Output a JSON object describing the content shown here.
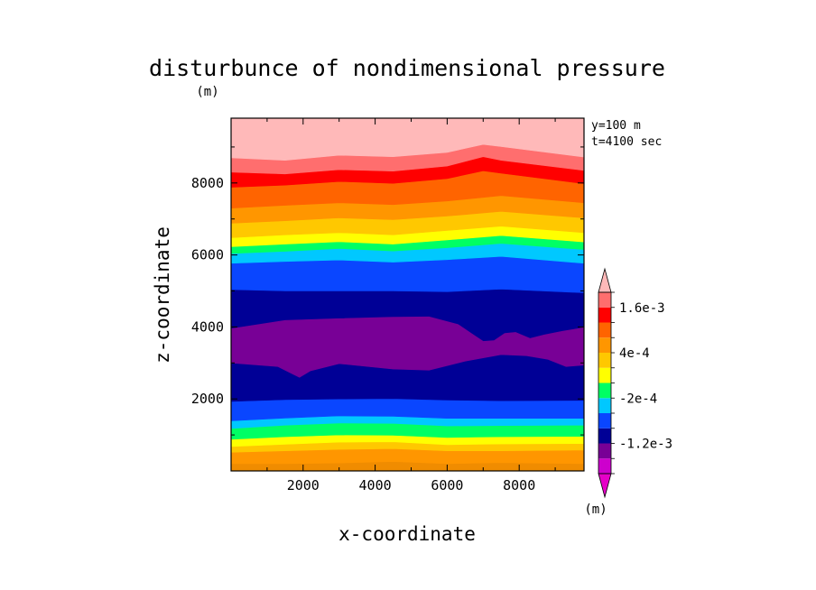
{
  "chart_data": {
    "type": "contourf",
    "title": "disturbunce of nondimensional pressure",
    "xlabel": "x-coordinate",
    "ylabel": "z-coordinate",
    "x_unit": "(m)",
    "y_unit": "(m)",
    "xlim": [
      0,
      9800
    ],
    "ylim": [
      0,
      9800
    ],
    "xticks": [
      2000,
      4000,
      6000,
      8000
    ],
    "yticks": [
      2000,
      4000,
      6000,
      8000
    ],
    "info": {
      "slice": "y=100 m",
      "time": "t=4100 sec"
    },
    "colorbar": {
      "unit": "(m)",
      "extend": "both",
      "under_color": "#e600c8",
      "over_color": "#ffb9b9",
      "levels": [
        -0.002,
        -0.0016,
        -0.0012,
        -0.0008,
        -0.0004,
        -0.0002,
        0,
        0.0002,
        0.0004,
        0.0008,
        0.0012,
        0.0016,
        0.002
      ],
      "colors": [
        "#cd00cd",
        "#780096",
        "#000096",
        "#0a46ff",
        "#00c8ff",
        "#00ff64",
        "#ffff00",
        "#ffc800",
        "#ff9600",
        "#ff6400",
        "#ff0000",
        "#ff6e6e"
      ],
      "tick_labels": [
        {
          "level": 0.0016,
          "text": "1.6e-3"
        },
        {
          "level": 0.0004,
          "text": "4e-4"
        },
        {
          "level": -0.0002,
          "text": "-2e-4"
        },
        {
          "level": -0.0012,
          "text": "-1.2e-3"
        }
      ]
    },
    "bands": [
      {
        "color": "#f08c00",
        "lower": [
          [
            0,
            0
          ],
          [
            9800,
            0
          ]
        ]
      },
      {
        "color": "#ff9600",
        "lower": [
          [
            0,
            200
          ],
          [
            1500,
            200
          ],
          [
            3000,
            220
          ],
          [
            4500,
            260
          ],
          [
            6000,
            200
          ],
          [
            7500,
            230
          ],
          [
            9800,
            200
          ]
        ]
      },
      {
        "color": "#ffc800",
        "lower": [
          [
            0,
            520
          ],
          [
            1500,
            560
          ],
          [
            3000,
            600
          ],
          [
            4500,
            620
          ],
          [
            6000,
            560
          ],
          [
            7500,
            560
          ],
          [
            9800,
            580
          ]
        ]
      },
      {
        "color": "#ffff00",
        "lower": [
          [
            0,
            680
          ],
          [
            1500,
            740
          ],
          [
            3000,
            800
          ],
          [
            4500,
            810
          ],
          [
            6000,
            730
          ],
          [
            7500,
            750
          ],
          [
            9800,
            760
          ]
        ]
      },
      {
        "color": "#00ff64",
        "lower": [
          [
            0,
            880
          ],
          [
            1500,
            950
          ],
          [
            3000,
            1000
          ],
          [
            4500,
            990
          ],
          [
            6000,
            930
          ],
          [
            7500,
            950
          ],
          [
            9800,
            960
          ]
        ]
      },
      {
        "color": "#00c8ff",
        "lower": [
          [
            0,
            1180
          ],
          [
            1500,
            1270
          ],
          [
            3000,
            1330
          ],
          [
            4500,
            1320
          ],
          [
            6000,
            1250
          ],
          [
            7500,
            1260
          ],
          [
            9800,
            1270
          ]
        ]
      },
      {
        "color": "#0a46ff",
        "lower": [
          [
            0,
            1390
          ],
          [
            1500,
            1470
          ],
          [
            3000,
            1530
          ],
          [
            4500,
            1520
          ],
          [
            6000,
            1460
          ],
          [
            7500,
            1460
          ],
          [
            9800,
            1460
          ]
        ]
      },
      {
        "color": "#000096",
        "lower": [
          [
            0,
            1930
          ],
          [
            1500,
            1980
          ],
          [
            3000,
            2000
          ],
          [
            4500,
            2010
          ],
          [
            6000,
            1970
          ],
          [
            7500,
            1950
          ],
          [
            9800,
            1960
          ]
        ]
      },
      {
        "color": "#780096",
        "lower": [
          [
            0,
            3000
          ],
          [
            1300,
            2900
          ],
          [
            1700,
            2700
          ],
          [
            1900,
            2600
          ],
          [
            2200,
            2780
          ],
          [
            3000,
            2980
          ],
          [
            4500,
            2830
          ],
          [
            5500,
            2800
          ],
          [
            6500,
            3050
          ],
          [
            7500,
            3230
          ],
          [
            8200,
            3200
          ],
          [
            8800,
            3100
          ],
          [
            9300,
            2900
          ],
          [
            9800,
            2940
          ]
        ],
        "upper": [
          [
            0,
            3950
          ],
          [
            1500,
            4180
          ],
          [
            3000,
            4230
          ],
          [
            4500,
            4270
          ],
          [
            5500,
            4280
          ],
          [
            6300,
            4070
          ],
          [
            6700,
            3800
          ],
          [
            7000,
            3600
          ],
          [
            7300,
            3620
          ],
          [
            7600,
            3820
          ],
          [
            7900,
            3850
          ],
          [
            8300,
            3680
          ],
          [
            8700,
            3780
          ],
          [
            9200,
            3880
          ],
          [
            9800,
            3980
          ]
        ]
      },
      {
        "color": "#0a46ff",
        "lower": [
          [
            0,
            5040
          ],
          [
            1500,
            5000
          ],
          [
            3000,
            5000
          ],
          [
            4500,
            5000
          ],
          [
            6000,
            4980
          ],
          [
            7500,
            5050
          ],
          [
            9800,
            4950
          ]
        ]
      },
      {
        "color": "#00c8ff",
        "lower": [
          [
            0,
            5770
          ],
          [
            1500,
            5820
          ],
          [
            3000,
            5860
          ],
          [
            4500,
            5800
          ],
          [
            6000,
            5870
          ],
          [
            7500,
            5960
          ],
          [
            9800,
            5770
          ]
        ]
      },
      {
        "color": "#00ff64",
        "lower": [
          [
            0,
            6040
          ],
          [
            1500,
            6100
          ],
          [
            3000,
            6180
          ],
          [
            4500,
            6110
          ],
          [
            6000,
            6200
          ],
          [
            7500,
            6320
          ],
          [
            9800,
            6150
          ]
        ]
      },
      {
        "color": "#ffff00",
        "lower": [
          [
            0,
            6230
          ],
          [
            1500,
            6300
          ],
          [
            3000,
            6370
          ],
          [
            4500,
            6300
          ],
          [
            6000,
            6420
          ],
          [
            7500,
            6540
          ],
          [
            9800,
            6360
          ]
        ]
      },
      {
        "color": "#ffc800",
        "lower": [
          [
            0,
            6480
          ],
          [
            1500,
            6560
          ],
          [
            3000,
            6620
          ],
          [
            4500,
            6560
          ],
          [
            6000,
            6680
          ],
          [
            7500,
            6800
          ],
          [
            9800,
            6620
          ]
        ]
      },
      {
        "color": "#ff9600",
        "lower": [
          [
            0,
            6880
          ],
          [
            1500,
            6950
          ],
          [
            3000,
            7030
          ],
          [
            4500,
            6980
          ],
          [
            6000,
            7080
          ],
          [
            7500,
            7210
          ],
          [
            9800,
            7030
          ]
        ]
      },
      {
        "color": "#ff6400",
        "lower": [
          [
            0,
            7300
          ],
          [
            1500,
            7380
          ],
          [
            3000,
            7450
          ],
          [
            4500,
            7400
          ],
          [
            6000,
            7500
          ],
          [
            7500,
            7650
          ],
          [
            9800,
            7450
          ]
        ]
      },
      {
        "color": "#ff0000",
        "lower": [
          [
            0,
            7880
          ],
          [
            1500,
            7940
          ],
          [
            3000,
            8040
          ],
          [
            4500,
            7990
          ],
          [
            6000,
            8120
          ],
          [
            7000,
            8340
          ],
          [
            7500,
            8270
          ],
          [
            9800,
            7980
          ]
        ]
      },
      {
        "color": "#ff6e6e",
        "lower": [
          [
            0,
            8300
          ],
          [
            1500,
            8250
          ],
          [
            3000,
            8370
          ],
          [
            4500,
            8330
          ],
          [
            6000,
            8470
          ],
          [
            7000,
            8730
          ],
          [
            7500,
            8630
          ],
          [
            9800,
            8350
          ]
        ]
      },
      {
        "color": "#ffb9b9",
        "lower": [
          [
            0,
            8700
          ],
          [
            1500,
            8630
          ],
          [
            3000,
            8770
          ],
          [
            4500,
            8730
          ],
          [
            6000,
            8850
          ],
          [
            7000,
            9070
          ],
          [
            7500,
            9010
          ],
          [
            9800,
            8720
          ]
        ]
      }
    ]
  }
}
